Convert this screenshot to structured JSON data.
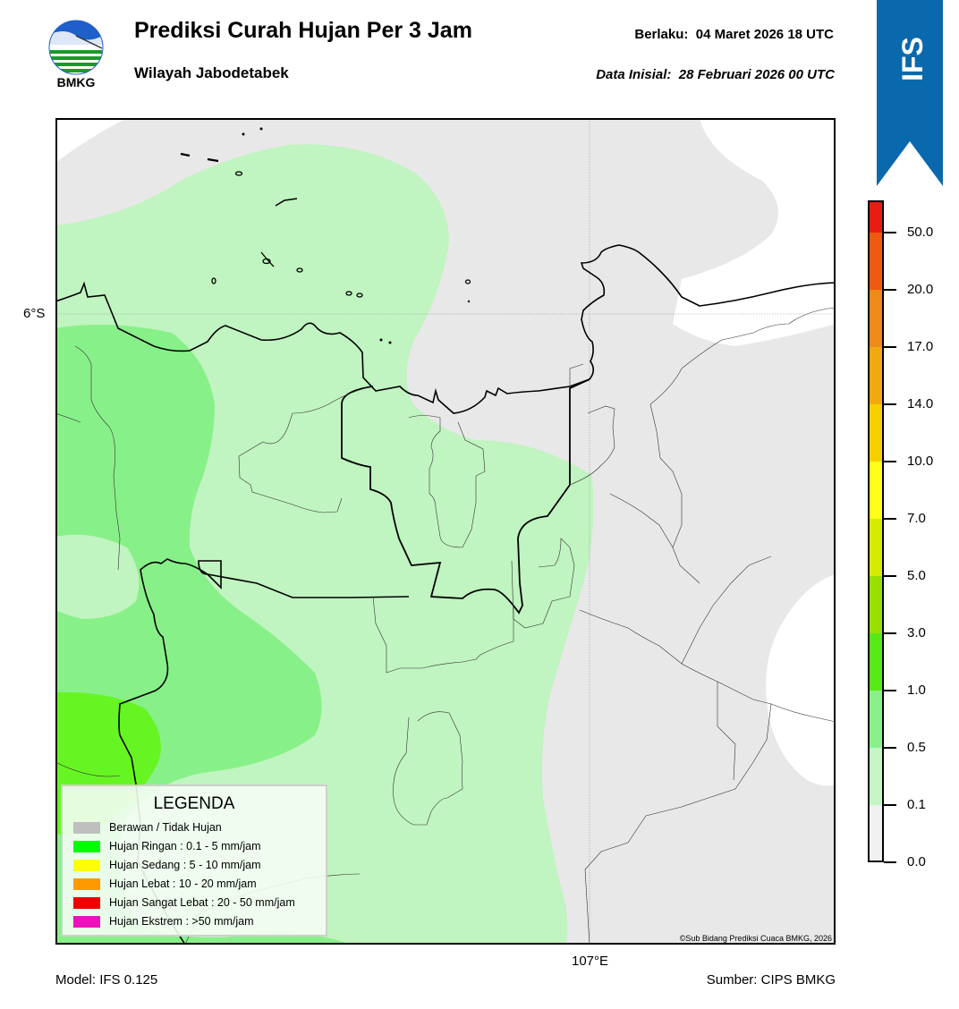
{
  "header": {
    "title": "Prediksi Curah Hujan Per 3 Jam",
    "subtitle": "Wilayah Jabodetabek",
    "valid_label": "Berlaku:",
    "valid_value": "04 Maret 2026 18 UTC",
    "init_label": "Data Inisial:",
    "init_value": "28 Februari 2026 00 UTC"
  },
  "logo": {
    "text": "BMKG",
    "icon": "bmkg-logo-icon"
  },
  "ribbon": {
    "text": "IFS",
    "color": "#0a69ad"
  },
  "axes": {
    "lat_label": "6°S",
    "lon_label": "107°E"
  },
  "footer": {
    "model": "Model: IFS 0.125",
    "source": "Sumber: CIPS BMKG"
  },
  "copyright": "©Sub Bidang Prediksi Cuaca BMKG, 2026",
  "legend": {
    "title": "LEGENDA",
    "items": [
      {
        "label": "Berawan / Tidak Hujan",
        "color": "#bfbfbf"
      },
      {
        "label": "Hujan Ringan : 0.1 - 5 mm/jam",
        "color": "#00ff00"
      },
      {
        "label": "Hujan Sedang : 5 - 10 mm/jam",
        "color": "#ffff00"
      },
      {
        "label": "Hujan Lebat : 10 - 20 mm/jam",
        "color": "#ff9900"
      },
      {
        "label": "Hujan Sangat Lebat : 20 - 50 mm/jam",
        "color": "#ee0000"
      },
      {
        "label": "Hujan Ekstrem : >50 mm/jam",
        "color": "#ee11bb"
      }
    ]
  },
  "colorbar": {
    "ticks": [
      "0.0",
      "0.1",
      "0.5",
      "1.0",
      "3.0",
      "5.0",
      "7.0",
      "10.0",
      "14.0",
      "17.0",
      "20.0",
      "50.0"
    ],
    "colors": [
      "#f0f0f0",
      "#c4f5c4",
      "#8af08a",
      "#58e817",
      "#97e000",
      "#d4ec00",
      "#ffff1a",
      "#f7d000",
      "#f0aa10",
      "#ee8a18",
      "#ee5a12",
      "#e81c10",
      "#e21ab8"
    ]
  },
  "map": {
    "colors": {
      "no_rain": "#e8e8e8",
      "light_01_05": "#c0f4c0",
      "light_05_1": "#88f088",
      "light_1_3": "#66f522"
    }
  }
}
